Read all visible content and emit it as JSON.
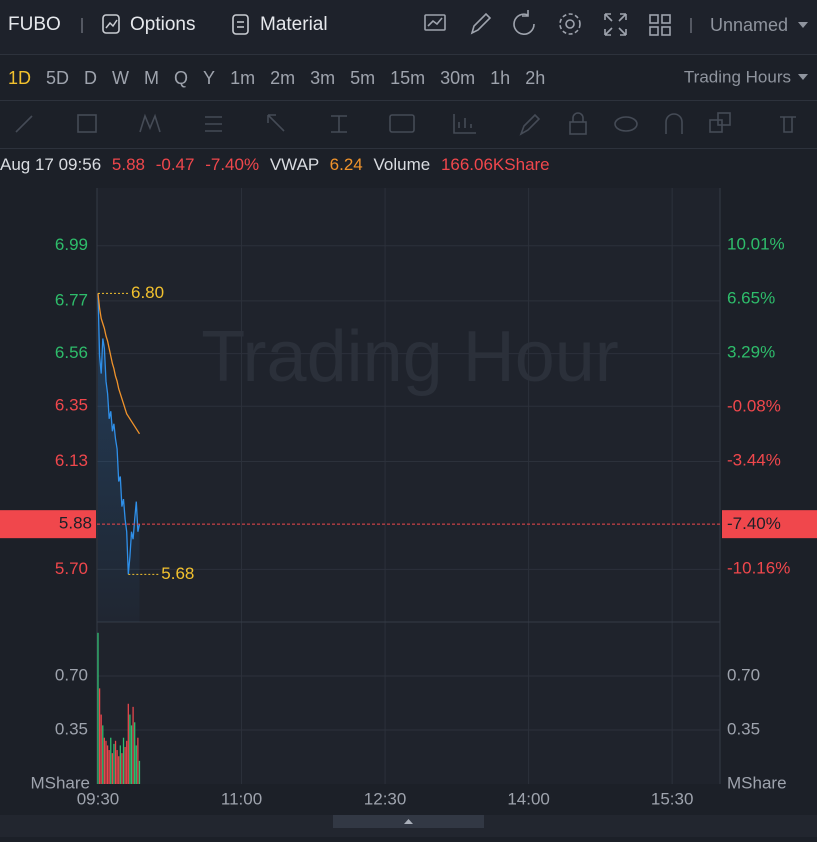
{
  "toolbar": {
    "symbol": "FUBO",
    "options": "Options",
    "material": "Material",
    "layout": "Unnamed"
  },
  "timeframes": {
    "items": [
      "1D",
      "5D",
      "D",
      "W",
      "M",
      "Q",
      "Y",
      "1m",
      "2m",
      "3m",
      "5m",
      "15m",
      "30m",
      "1h",
      "2h"
    ],
    "active": 0,
    "session": "Trading Hours"
  },
  "quote": {
    "time": "Aug 17 09:56",
    "price": 5.88,
    "change": -0.47,
    "change_pct": {
      "value": -7.4,
      "label": "-7.40%"
    },
    "vwap_label": "VWAP",
    "vwap": 6.24,
    "volume_label": "Volume",
    "volume": "166.06KShare"
  },
  "chart": {
    "type": "line",
    "watermark": "Trading Hour",
    "x": [
      0,
      1,
      2,
      3,
      4,
      5,
      6,
      7,
      8,
      9,
      10,
      11,
      12,
      13,
      14,
      15,
      16,
      17,
      18,
      19,
      20,
      21,
      22,
      23,
      24,
      25,
      26
    ],
    "xlim": [
      0,
      390
    ],
    "xticks": [
      {
        "value": 0,
        "label": "09:30"
      },
      {
        "value": 90,
        "label": "11:00"
      },
      {
        "value": 180,
        "label": "12:30"
      },
      {
        "value": 270,
        "label": "14:00"
      },
      {
        "value": 360,
        "label": "15:30"
      }
    ],
    "ylim": [
      5.49,
      7.22
    ],
    "yticks": [
      6.99,
      6.77,
      6.56,
      6.35,
      6.13,
      {
        "value": 5.7,
        "label": "5.70"
      }
    ],
    "y2lim": [
      -13.46,
      13.56
    ],
    "y2ticks": [
      {
        "value": 10.01,
        "label": "10.01%"
      },
      {
        "value": 6.65,
        "label": "6.65%"
      },
      {
        "value": 3.29,
        "label": "3.29%"
      },
      {
        "value": -0.08,
        "label": "-0.08%"
      },
      {
        "value": -3.44,
        "label": "-3.44%"
      },
      {
        "value": -10.16,
        "label": "-10.16%"
      }
    ],
    "grid": true,
    "price": {
      "color": "#2f8fe8",
      "values": [
        6.8,
        6.55,
        6.48,
        6.62,
        6.58,
        6.45,
        6.4,
        6.3,
        6.33,
        6.25,
        6.28,
        6.22,
        6.18,
        6.05,
        6.07,
        5.95,
        5.98,
        5.9,
        5.85,
        5.68,
        5.75,
        5.85,
        5.82,
        5.9,
        5.97,
        5.85,
        5.88
      ]
    },
    "vwap": {
      "color": "#f0932b",
      "values": [
        6.8,
        6.74,
        6.7,
        6.68,
        6.66,
        6.63,
        6.61,
        6.58,
        6.55,
        6.52,
        6.5,
        6.47,
        6.45,
        6.42,
        6.4,
        6.38,
        6.36,
        6.34,
        6.32,
        6.31,
        6.3,
        6.29,
        6.28,
        6.27,
        6.26,
        6.25,
        6.24
      ]
    },
    "high": {
      "value": 6.8,
      "label": "6.80"
    },
    "low": 5.68,
    "volume": {
      "values": [
        0.98,
        0.62,
        0.45,
        0.38,
        0.3,
        0.28,
        0.25,
        0.22,
        0.3,
        0.2,
        0.26,
        0.28,
        0.22,
        0.18,
        0.25,
        0.2,
        0.3,
        0.24,
        0.28,
        0.52,
        0.45,
        0.38,
        0.5,
        0.4,
        0.25,
        0.3,
        0.15
      ],
      "lim": [
        0,
        1.05
      ],
      "ticks": [
        {
          "value": 0.7,
          "label": "0.70"
        },
        {
          "value": 0.35,
          "label": "0.35"
        }
      ],
      "unit": "MShare",
      "up_color": "#2fbf71",
      "down_color": "#e8474c"
    }
  }
}
